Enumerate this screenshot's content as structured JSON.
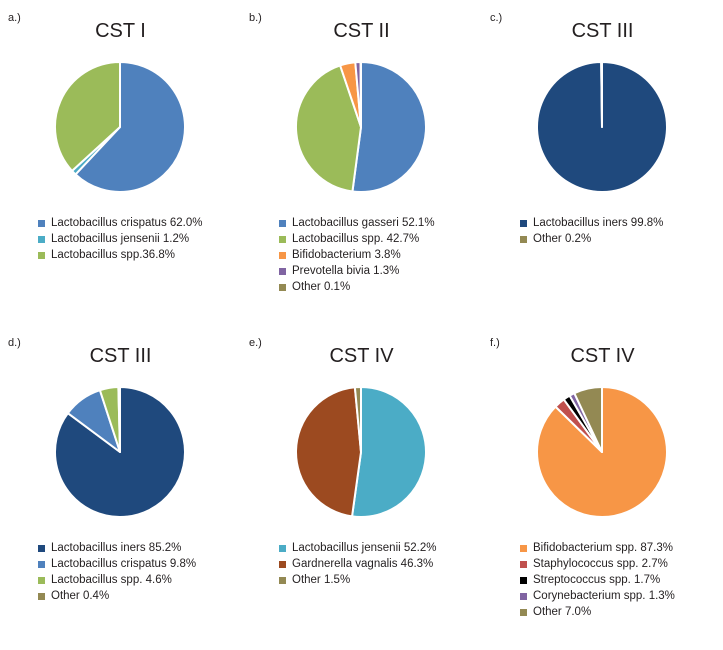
{
  "chart_data": [
    {
      "panel_label": "a.)",
      "title": "CST I",
      "type": "pie",
      "slices": [
        {
          "name": "Lactobacillus crispatus 62.0%",
          "value": 62.0,
          "color": "#4f81bd"
        },
        {
          "name": "Lactobacillus jensenii 1.2%",
          "value": 1.2,
          "color": "#4bacc6"
        },
        {
          "name": "Lactobacillus spp.36.8%",
          "value": 36.8,
          "color": "#9bbb59"
        }
      ]
    },
    {
      "panel_label": "b.)",
      "title": "CST II",
      "type": "pie",
      "slices": [
        {
          "name": "Lactobacillus gasseri 52.1%",
          "value": 52.1,
          "color": "#4f81bd"
        },
        {
          "name": "Lactobacillus spp. 42.7%",
          "value": 42.7,
          "color": "#9bbb59"
        },
        {
          "name": "Bifidobacterium 3.8%",
          "value": 3.8,
          "color": "#f79646"
        },
        {
          "name": "Prevotella bivia 1.3%",
          "value": 1.3,
          "color": "#8064a2"
        },
        {
          "name": "Other 0.1%",
          "value": 0.1,
          "color": "#938953"
        }
      ]
    },
    {
      "panel_label": "c.)",
      "title": "CST III",
      "type": "pie",
      "slices": [
        {
          "name": "Lactobacillus iners 99.8%",
          "value": 99.8,
          "color": "#1f497d"
        },
        {
          "name": "Other 0.2%",
          "value": 0.2,
          "color": "#938953"
        }
      ]
    },
    {
      "panel_label": "d.)",
      "title": "CST III",
      "type": "pie",
      "slices": [
        {
          "name": "Lactobacillus iners 85.2%",
          "value": 85.2,
          "color": "#1f497d"
        },
        {
          "name": "Lactobacillus crispatus 9.8%",
          "value": 9.8,
          "color": "#4f81bd"
        },
        {
          "name": "Lactobacillus spp. 4.6%",
          "value": 4.6,
          "color": "#9bbb59"
        },
        {
          "name": "Other 0.4%",
          "value": 0.4,
          "color": "#938953"
        }
      ]
    },
    {
      "panel_label": "e.)",
      "title": "CST IV",
      "type": "pie",
      "slices": [
        {
          "name": "Lactobacillus jensenii 52.2%",
          "value": 52.2,
          "color": "#4bacc6"
        },
        {
          "name": "Gardnerella vagnalis 46.3%",
          "value": 46.3,
          "color": "#9c4a20"
        },
        {
          "name": "Other 1.5%",
          "value": 1.5,
          "color": "#938953"
        }
      ]
    },
    {
      "panel_label": "f.)",
      "title": "CST IV",
      "type": "pie",
      "slices": [
        {
          "name": "Bifidobacterium spp. 87.3%",
          "value": 87.3,
          "color": "#f79646"
        },
        {
          "name": "Staphylococcus spp. 2.7%",
          "value": 2.7,
          "color": "#c0504d"
        },
        {
          "name": "Streptococcus spp. 1.7%",
          "value": 1.7,
          "color": "#000000"
        },
        {
          "name": "Corynebacterium spp. 1.3%",
          "value": 1.3,
          "color": "#8064a2"
        },
        {
          "name": "Other 7.0%",
          "value": 7.0,
          "color": "#938953"
        }
      ]
    }
  ]
}
